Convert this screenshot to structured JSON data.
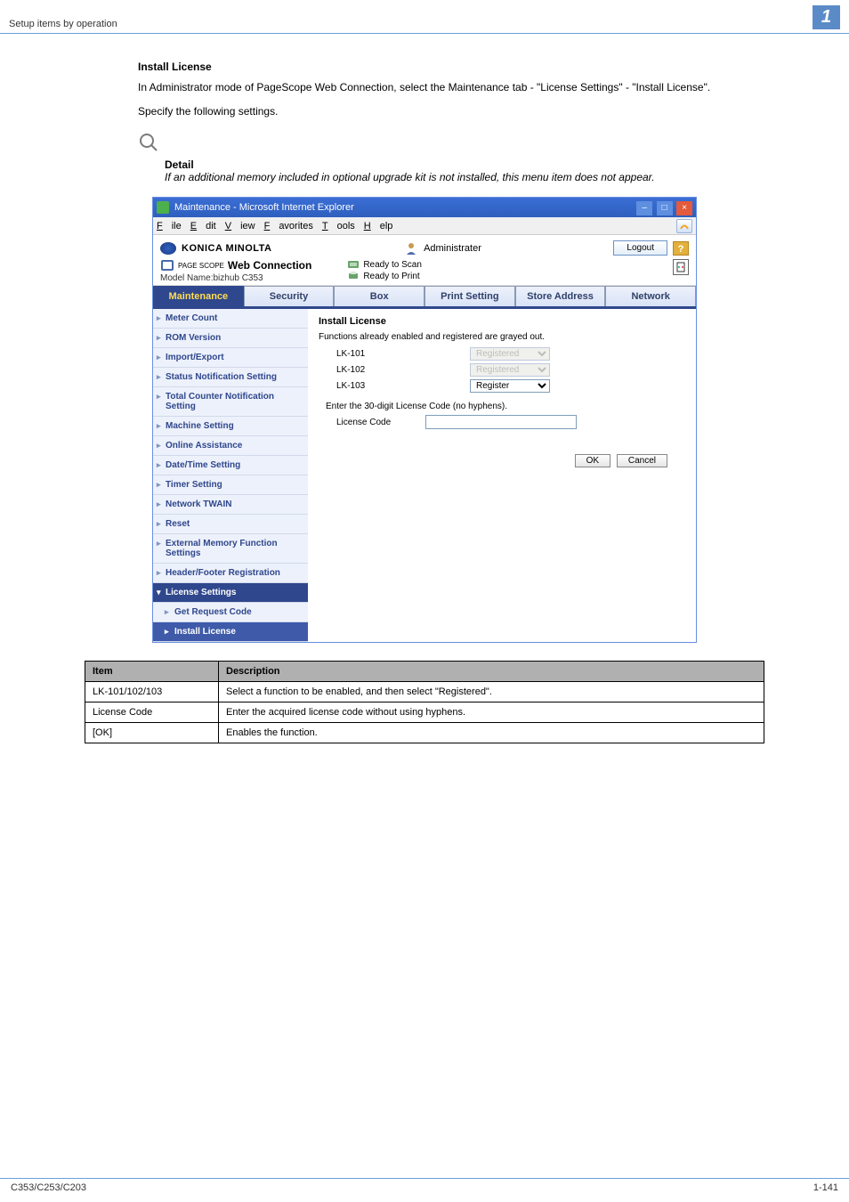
{
  "page": {
    "header_left": "Setup items by operation",
    "header_number": "1",
    "footer_left": "C353/C253/C203",
    "footer_right": "1-141"
  },
  "text": {
    "section_title": "Install License",
    "para1": "In Administrator mode of PageScope Web Connection, select the Maintenance tab - \"License Settings\" - \"Install License\".",
    "para2": "Specify the following settings.",
    "detail_label": "Detail",
    "detail_text": "If an additional memory included in optional upgrade kit is not installed, this menu item does not appear."
  },
  "window": {
    "title": "Maintenance - Microsoft Internet Explorer",
    "menus": [
      "File",
      "Edit",
      "View",
      "Favorites",
      "Tools",
      "Help"
    ],
    "brand": "KONICA MINOLTA",
    "admin_label": "Administrater",
    "logout": "Logout",
    "wc_brand_pre": "PAGE SCOPE",
    "wc_brand_main": "Web Connection",
    "model": "Model Name:bizhub C353",
    "status_scan": "Ready to Scan",
    "status_print": "Ready to Print"
  },
  "tabs": {
    "items": [
      "Maintenance",
      "Security",
      "Box",
      "Print Setting",
      "Store Address",
      "Network"
    ],
    "active_index": 0
  },
  "sidebar": {
    "items": [
      "Meter Count",
      "ROM Version",
      "Import/Export",
      "Status Notification Setting",
      "Total Counter Notification Setting",
      "Machine Setting",
      "Online Assistance",
      "Date/Time Setting",
      "Timer Setting",
      "Network TWAIN",
      "Reset",
      "External Memory Function Settings",
      "Header/Footer Registration"
    ],
    "license_settings": "License Settings",
    "sub_get_request": "Get Request Code",
    "sub_install_license": "Install License"
  },
  "panel": {
    "title": "Install License",
    "note": "Functions already enabled and registered are grayed out.",
    "lk": [
      {
        "label": "LK-101",
        "value": "Registered",
        "disabled": true
      },
      {
        "label": "LK-102",
        "value": "Registered",
        "disabled": true
      },
      {
        "label": "LK-103",
        "value": "Register",
        "disabled": false
      }
    ],
    "enter_note": "Enter the 30-digit License Code (no hyphens).",
    "code_label": "License Code",
    "ok": "OK",
    "cancel": "Cancel"
  },
  "desc_table": {
    "headers": [
      "Item",
      "Description"
    ],
    "rows": [
      [
        "LK-101/102/103",
        "Select a function to be enabled, and then select \"Registered\"."
      ],
      [
        "License Code",
        "Enter the acquired license code without using hyphens."
      ],
      [
        "[OK]",
        "Enables the function."
      ]
    ]
  }
}
